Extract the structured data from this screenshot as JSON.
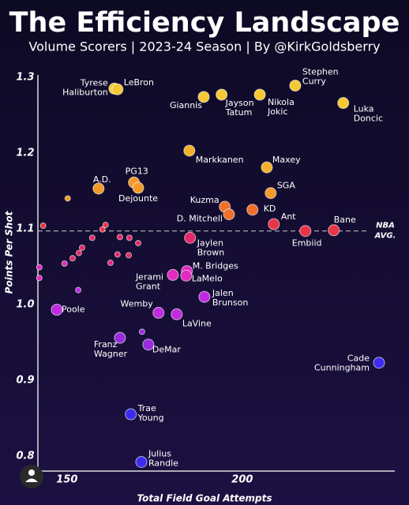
{
  "chart_data": {
    "type": "scatter",
    "title": "The Efficiency Landscape",
    "subtitle": "Volume Scorers | 2023-24 Season | By @KirkGoldsberry",
    "xlabel": "Total Field Goal Attempts",
    "ylabel": "Points Per Shot",
    "xlim": [
      141.7,
      243.5
    ],
    "ylim": [
      0.78,
      1.303
    ],
    "xticks": [
      150,
      200
    ],
    "yticks": [
      0.8,
      0.9,
      {
        "value": 1,
        "label": "1.0"
      },
      1.1,
      1.2,
      1.3
    ],
    "reference_line": {
      "value": 1.097,
      "label": [
        "NBA",
        "AVG."
      ]
    },
    "x": [
      163.5,
      164.4,
      189.0,
      194.1,
      205.0,
      215.1,
      228.8,
      184.9,
      207.0,
      159.0,
      169.1,
      170.3,
      195.0,
      208.1,
      196.2,
      202.9,
      209.0,
      226.1,
      218.0,
      185.1,
      184.2,
      184.0,
      180.2,
      189.2,
      176.1,
      181.3,
      147.1,
      165.1,
      173.2,
      239.0,
      168.2,
      171.2,
      150.2,
      143.2,
      160.1,
      161.0,
      157.2,
      154.3,
      153.4,
      151.6,
      149.3,
      142.1,
      142.1,
      153.2,
      162.4,
      164.4,
      167.6,
      165.1,
      167.8,
      170.3,
      171.4
    ],
    "values": [
      1.285,
      1.284,
      1.274,
      1.277,
      1.277,
      1.289,
      1.266,
      1.203,
      1.181,
      1.153,
      1.161,
      1.154,
      1.129,
      1.147,
      1.119,
      1.125,
      1.106,
      1.098,
      1.097,
      1.088,
      1.044,
      1.038,
      1.039,
      1.01,
      0.989,
      0.987,
      0.993,
      0.956,
      0.947,
      0.923,
      0.855,
      0.792,
      1.14,
      1.104,
      1.099,
      1.105,
      1.088,
      1.075,
      1.068,
      1.061,
      1.054,
      1.049,
      1.035,
      1.019,
      1.055,
      1.066,
      1.065,
      1.089,
      1.088,
      1.081,
      0.964
    ],
    "labels": [
      [
        "Tyrese",
        "Haliburton"
      ],
      [
        "LeBron"
      ],
      [
        "Giannis"
      ],
      [
        "Jayson",
        "Tatum"
      ],
      [
        "Nikola",
        "Jokic"
      ],
      [
        "Stephen",
        "Curry"
      ],
      [
        "Luka",
        "Doncic"
      ],
      [
        "Markkanen"
      ],
      [
        "Maxey"
      ],
      [
        "A.D."
      ],
      [
        "PG13"
      ],
      [
        "Dejounte"
      ],
      [
        "Kuzma"
      ],
      [
        "SGA"
      ],
      [
        "D. Mitchell"
      ],
      [
        "KD"
      ],
      [
        "Ant"
      ],
      [
        "Bane"
      ],
      [
        "Embiid"
      ],
      [
        "Jaylen",
        "Brown"
      ],
      [
        "M. Bridges"
      ],
      [
        "LaMelo"
      ],
      [
        "Jerami",
        "Grant"
      ],
      [
        "Jalen",
        "Brunson"
      ],
      [
        "Wemby"
      ],
      [
        "LaVine"
      ],
      [
        "Poole"
      ],
      [
        "Franz",
        "Wagner"
      ],
      [
        "DeMar"
      ],
      [
        "Cade",
        "Cunningham"
      ],
      [
        "Trae",
        "Young"
      ],
      [
        "Julius",
        "Randle"
      ],
      null,
      null,
      null,
      null,
      null,
      null,
      null,
      null,
      null,
      null,
      null,
      null,
      null,
      null,
      null,
      null,
      null,
      null,
      null
    ],
    "colors": [
      "#f6c833",
      "#f6c833",
      "#f6c833",
      "#f6c833",
      "#f6c833",
      "#f6c833",
      "#f6c833",
      "#f3b02a",
      "#f3b02a",
      "#f39a2a",
      "#f39a2a",
      "#f39a2a",
      "#ef6f2c",
      "#f39a2a",
      "#ef6f2c",
      "#ef6f2c",
      "#e83448",
      "#e83448",
      "#e83448",
      "#e02a6a",
      "#e02ac0",
      "#e02ac0",
      "#e02ac0",
      "#c02ae0",
      "#c02ae0",
      "#c02ae0",
      "#c02ae0",
      "#9a2ae0",
      "#9a2ae0",
      "#3d2cf0",
      "#3d2cf0",
      "#3d2cf0",
      "#f39a2a",
      "#e83448",
      "#e83448",
      "#e83448",
      "#e02a6a",
      "#e02a6a",
      "#e02a6a",
      "#e02a6a",
      "#e02ac0",
      "#e02ac0",
      "#e02ac0",
      "#c02ae0",
      "#e02a80",
      "#e02a6a",
      "#e02a6a",
      "#e02a6a",
      "#e02a6a",
      "#e02a6a",
      "#9a2ae0"
    ]
  }
}
